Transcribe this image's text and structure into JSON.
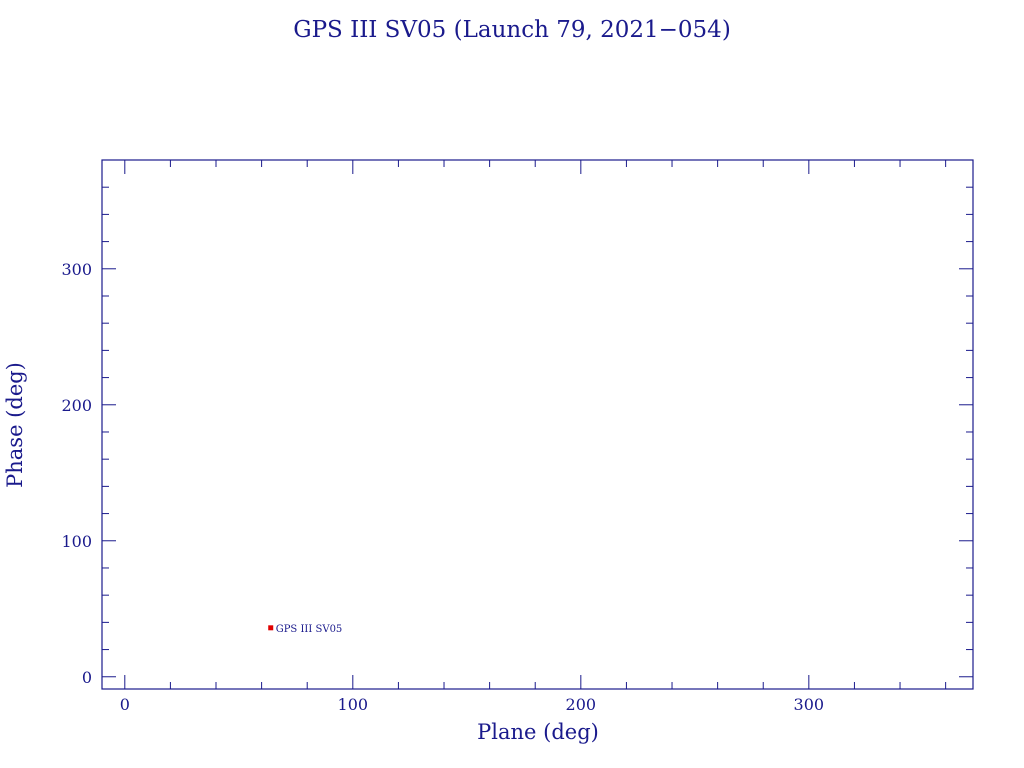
{
  "colors": {
    "frame": "#1a1a8c",
    "text": "#1a1a8c",
    "marker": "#e00000",
    "background": "#ffffff"
  },
  "chart_data": {
    "type": "scatter",
    "title": "GPS III SV05 (Launch 79, 2021−054)",
    "xlabel": "Plane (deg)",
    "ylabel": "Phase (deg)",
    "xlim": [
      -10,
      372
    ],
    "ylim": [
      -9,
      380
    ],
    "xticks": [
      0,
      100,
      200,
      300
    ],
    "xtick_labels": [
      "0",
      "100",
      "200",
      "300"
    ],
    "yticks": [
      0,
      100,
      200,
      300
    ],
    "ytick_labels": [
      "0",
      "100",
      "200",
      "300"
    ],
    "x_minor_step": 20,
    "y_minor_step": 20,
    "grid": false,
    "legend": "none",
    "points": [
      {
        "x": 64,
        "y": 36,
        "label": "GPS III SV05"
      }
    ]
  }
}
